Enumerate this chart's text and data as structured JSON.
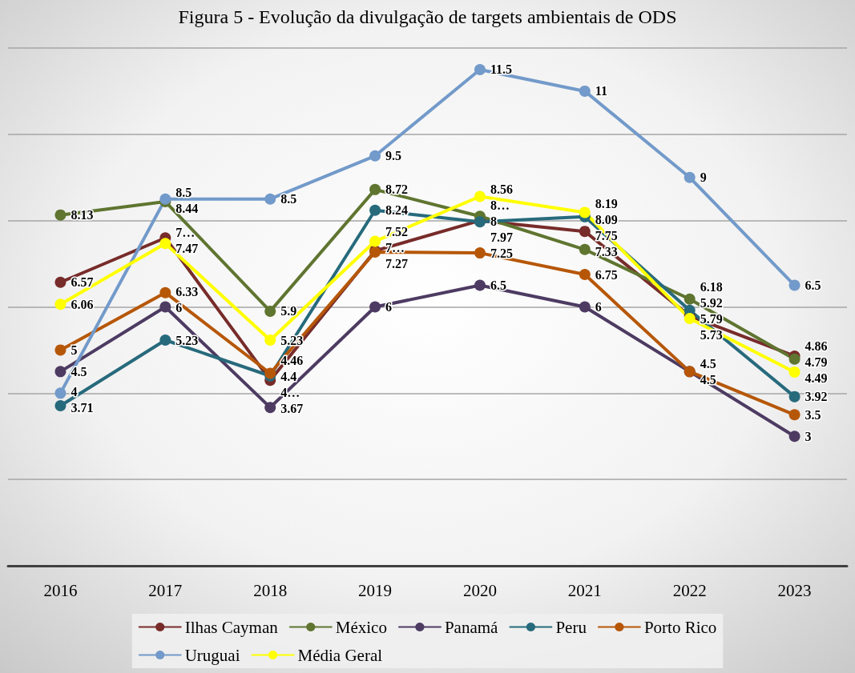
{
  "chart_data": {
    "type": "line",
    "title": "Figura 5 - Evolução da divulgação de targets ambientais de ODS",
    "categories": [
      "2016",
      "2017",
      "2018",
      "2019",
      "2020",
      "2021",
      "2022",
      "2023"
    ],
    "series": [
      {
        "name": "Ilhas Cayman",
        "color": "#772c2a",
        "values": [
          6.57,
          7.6,
          4.3,
          7.3,
          8,
          7.75,
          5.79,
          4.86
        ],
        "value_labels": [
          "6.57",
          "7…",
          "4…",
          "7…",
          "8",
          "7.75",
          "5.79",
          "4.86"
        ]
      },
      {
        "name": "México",
        "color": "#5f7530",
        "values": [
          8.13,
          8.44,
          5.9,
          8.72,
          8.1,
          7.33,
          6.18,
          4.79
        ],
        "value_labels": [
          "8.13",
          "8.44",
          "5.9",
          "8.72",
          "8…",
          "7.33",
          "6.18",
          "4.79"
        ]
      },
      {
        "name": "Panamá",
        "color": "#4d3b62",
        "values": [
          4.5,
          6,
          3.67,
          6,
          6.5,
          6,
          4.5,
          3
        ]
      },
      {
        "name": "Peru",
        "color": "#276a7c",
        "values": [
          3.71,
          5.23,
          4.4,
          8.24,
          7.97,
          8.09,
          5.92,
          3.92
        ]
      },
      {
        "name": "Porto Rico",
        "color": "#b65708",
        "values": [
          5,
          6.33,
          4.46,
          7.27,
          7.25,
          6.75,
          4.5,
          3.5
        ]
      },
      {
        "name": "Uruguai",
        "color": "#729aca",
        "values": [
          4,
          8.5,
          8.5,
          9.5,
          11.5,
          11,
          9,
          6.5
        ]
      },
      {
        "name": "Média Geral",
        "color": "#ffff00",
        "values": [
          6.06,
          7.47,
          5.23,
          7.52,
          8.56,
          8.19,
          5.73,
          4.49
        ]
      }
    ],
    "ylim": [
      0,
      12
    ],
    "yticks": [
      {
        "value": 0,
        "label": null
      },
      {
        "value": 2,
        "label": null
      },
      {
        "value": 4,
        "label": null
      },
      {
        "value": 6,
        "label": null
      },
      {
        "value": 8,
        "label": null
      },
      {
        "value": 10,
        "label": null
      },
      {
        "value": 12,
        "label": null
      }
    ],
    "grid": "y",
    "legend": "bottom",
    "marker": "circle",
    "line_style": "solid",
    "data_labels": true,
    "tick_labels": "x"
  }
}
